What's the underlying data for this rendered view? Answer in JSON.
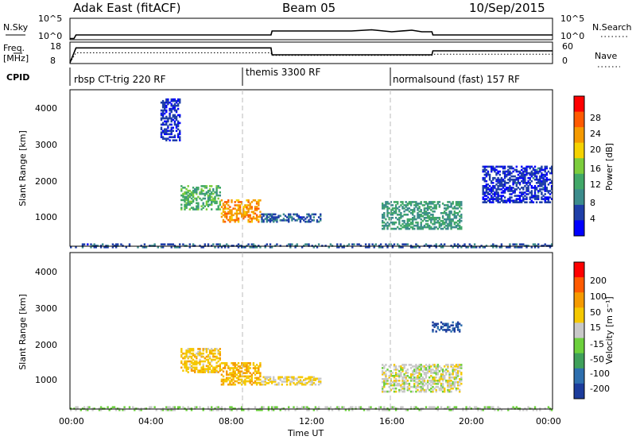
{
  "header": {
    "radar": "Adak East (fitACF)",
    "beam": "Beam 05",
    "date": "10/Sep/2015"
  },
  "panels": {
    "nsky": {
      "left_label": "N.Sky",
      "right_label": "N.Search",
      "left_ticks": [
        "10^5",
        "10^0"
      ],
      "right_ticks": [
        "10^5",
        "10^0"
      ]
    },
    "freq": {
      "left_label": "Freq.",
      "left_unit": "[MHz]",
      "left_ticks": [
        "18",
        "8"
      ],
      "right_label": "Nave",
      "right_ticks": [
        "60",
        "0"
      ]
    },
    "cpid": {
      "label": "CPID",
      "programs": [
        "rbsp CT-trig 220 RF",
        "themis 3300 RF",
        "normalsound (fast) 157 RF"
      ]
    },
    "power": {
      "ylabel": "Slant Range [km]",
      "yticks": [
        "4000",
        "3000",
        "2000",
        "1000"
      ],
      "colorbar_label": "Power [dB]",
      "colorbar_ticks": [
        "28",
        "24",
        "20",
        "16",
        "12",
        "8",
        "4"
      ],
      "colors": [
        "#0000ff",
        "#1f3fa8",
        "#3c8c8c",
        "#41a868",
        "#7ccd3c",
        "#f5d200",
        "#f59a00",
        "#ff5a00",
        "#ff0000"
      ]
    },
    "velocity": {
      "ylabel": "Slant Range [km]",
      "yticks": [
        "4000",
        "3000",
        "2000",
        "1000"
      ],
      "colorbar_label": "Velocity [m s⁻¹]",
      "colorbar_ticks": [
        "200",
        "100",
        "50",
        "15",
        "-15",
        "-50",
        "-100",
        "-200"
      ],
      "colors": [
        "#1c3c9c",
        "#2e6fae",
        "#3fa05a",
        "#6cd03c",
        "#c8c8c8",
        "#f5c800",
        "#f59a00",
        "#ff5a00",
        "#ff0000"
      ]
    },
    "xaxis": {
      "label": "Time UT",
      "ticks": [
        "00:00",
        "04:00",
        "08:00",
        "12:00",
        "16:00",
        "20:00",
        "00:00"
      ]
    }
  },
  "chart_data": [
    {
      "type": "line",
      "title": "N.Sky / N.Search",
      "x_unit": "hours UT",
      "series": [
        {
          "name": "N.Sky",
          "x": [
            0,
            0.2,
            0.3,
            10,
            10.05,
            14,
            15,
            16,
            17,
            17.5,
            18,
            18.05,
            24
          ],
          "y": [
            0.1,
            0.1,
            1.0,
            1.0,
            2.0,
            2.0,
            2.3,
            1.8,
            2.2,
            1.8,
            1.8,
            1.0,
            1.0
          ]
        }
      ],
      "ylim": [
        0,
        5
      ],
      "y_scale": "log"
    },
    {
      "type": "line",
      "title": "Freq. / Nave",
      "x_unit": "hours UT",
      "series": [
        {
          "name": "Freq.",
          "x": [
            0,
            0.3,
            10,
            10.05,
            18,
            18.05,
            24
          ],
          "y": [
            8,
            15.5,
            15.5,
            12,
            12,
            14,
            14
          ]
        },
        {
          "name": "Nave",
          "x": [
            0,
            0.3,
            10,
            10.05,
            18,
            18.05,
            24
          ],
          "y": [
            0,
            30,
            30,
            22,
            22,
            26,
            26
          ]
        }
      ],
      "ylim_left": [
        8,
        18
      ],
      "ylim_right": [
        0,
        60
      ]
    },
    {
      "type": "heatmap",
      "title": "Power",
      "x_unit": "hours UT",
      "y_unit": "km",
      "ylim": [
        180,
        4600
      ],
      "xlim": [
        0,
        24
      ],
      "clim": [
        0,
        30
      ],
      "features": [
        {
          "x": [
            5.5,
            7.5
          ],
          "y": [
            1250,
            1950
          ],
          "value": 12
        },
        {
          "x": [
            7.5,
            9.5
          ],
          "y": [
            900,
            1550
          ],
          "value": 22
        },
        {
          "x": [
            9.5,
            12.5
          ],
          "y": [
            900,
            1150
          ],
          "value": 6
        },
        {
          "x": [
            15.5,
            19.5
          ],
          "y": [
            700,
            1500
          ],
          "value": 10
        },
        {
          "x": [
            20.5,
            24
          ],
          "y": [
            1450,
            2500
          ],
          "value": 4
        },
        {
          "x": [
            4.5,
            5.5
          ],
          "y": [
            3200,
            4400
          ],
          "value": 4
        },
        {
          "x": [
            0,
            24
          ],
          "y": [
            180,
            300
          ],
          "value": 6
        }
      ]
    },
    {
      "type": "heatmap",
      "title": "Velocity",
      "x_unit": "hours UT",
      "y_unit": "km",
      "ylim": [
        180,
        4600
      ],
      "xlim": [
        0,
        24
      ],
      "clim": [
        -250,
        250
      ],
      "features": [
        {
          "x": [
            5.5,
            7.5
          ],
          "y": [
            1250,
            1950
          ],
          "value": 60
        },
        {
          "x": [
            7.5,
            9.5
          ],
          "y": [
            900,
            1550
          ],
          "value": 80
        },
        {
          "x": [
            9.5,
            12.5
          ],
          "y": [
            900,
            1150
          ],
          "value": 30
        },
        {
          "x": [
            15.5,
            19.5
          ],
          "y": [
            700,
            1500
          ],
          "value": 0
        },
        {
          "x": [
            18,
            19.5
          ],
          "y": [
            2400,
            2700
          ],
          "value": -200
        },
        {
          "x": [
            0,
            24
          ],
          "y": [
            180,
            300
          ],
          "value": -20
        }
      ]
    }
  ]
}
